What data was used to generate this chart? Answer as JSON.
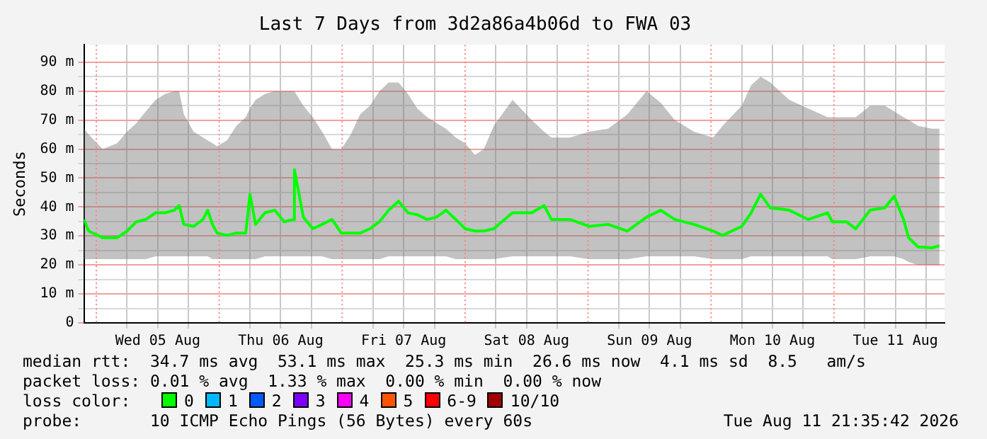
{
  "chart_data": {
    "type": "line",
    "title": "Last 7 Days from 3d2a86a4b06d to FWA 03",
    "ylabel": "Seconds",
    "legend_title": "loss color:",
    "legend": "bottom",
    "grid": true,
    "marker": "none",
    "line_style": "solid",
    "xlim": [
      "2026-08-04T21:35",
      "2026-08-11T21:35"
    ],
    "xticks": [
      {
        "value": "2026-08-05T06:00",
        "label": null
      },
      {
        "value": "2026-08-05T12:00",
        "label": "Wed 05 Aug"
      },
      {
        "value": "2026-08-05T18:00",
        "label": null
      },
      {
        "value": "2026-08-06T06:00",
        "label": null
      },
      {
        "value": "2026-08-06T12:00",
        "label": "Thu 06 Aug"
      },
      {
        "value": "2026-08-06T18:00",
        "label": null
      },
      {
        "value": "2026-08-07T06:00",
        "label": null
      },
      {
        "value": "2026-08-07T12:00",
        "label": "Fri 07 Aug"
      },
      {
        "value": "2026-08-07T18:00",
        "label": null
      },
      {
        "value": "2026-08-08T06:00",
        "label": null
      },
      {
        "value": "2026-08-08T12:00",
        "label": "Sat 08 Aug"
      },
      {
        "value": "2026-08-08T18:00",
        "label": null
      },
      {
        "value": "2026-08-09T06:00",
        "label": null
      },
      {
        "value": "2026-08-09T12:00",
        "label": "Sun 09 Aug"
      },
      {
        "value": "2026-08-09T18:00",
        "label": null
      },
      {
        "value": "2026-08-10T06:00",
        "label": null
      },
      {
        "value": "2026-08-10T12:00",
        "label": "Mon 10 Aug"
      },
      {
        "value": "2026-08-10T18:00",
        "label": null
      },
      {
        "value": "2026-08-11T06:00",
        "label": null
      },
      {
        "value": "2026-08-11T12:00",
        "label": "Tue 11 Aug"
      },
      {
        "value": "2026-08-11T18:00",
        "label": null
      }
    ],
    "ylim": [
      0,
      96
    ],
    "yticks": [
      0,
      {
        "value": 5,
        "label": null
      },
      {
        "value": 10,
        "label": "10 m"
      },
      {
        "value": 15,
        "label": null
      },
      {
        "value": 20,
        "label": "20 m"
      },
      {
        "value": 25,
        "label": null
      },
      {
        "value": 30,
        "label": "30 m"
      },
      {
        "value": 35,
        "label": null
      },
      {
        "value": 40,
        "label": "40 m"
      },
      {
        "value": 45,
        "label": null
      },
      {
        "value": 50,
        "label": "50 m"
      },
      {
        "value": 55,
        "label": null
      },
      {
        "value": 60,
        "label": "60 m"
      },
      {
        "value": 65,
        "label": null
      },
      {
        "value": 70,
        "label": "70 m"
      },
      {
        "value": 75,
        "label": null
      },
      {
        "value": 80,
        "label": "80 m"
      },
      {
        "value": 85,
        "label": null
      },
      {
        "value": 90,
        "label": "90 m"
      }
    ],
    "ref_lines": [
      {
        "axis": "x",
        "value": "2026-08-05T00:00",
        "color": "#ff8080",
        "line_style": "dotted"
      },
      {
        "axis": "x",
        "value": "2026-08-06T00:00",
        "color": "#ff8080",
        "line_style": "dotted"
      },
      {
        "axis": "x",
        "value": "2026-08-07T00:00",
        "color": "#ff8080",
        "line_style": "dotted"
      },
      {
        "axis": "x",
        "value": "2026-08-08T00:00",
        "color": "#ff8080",
        "line_style": "dotted"
      },
      {
        "axis": "x",
        "value": "2026-08-09T00:00",
        "color": "#ff8080",
        "line_style": "dotted"
      },
      {
        "axis": "x",
        "value": "2026-08-10T00:00",
        "color": "#ff8080",
        "line_style": "dotted"
      },
      {
        "axis": "x",
        "value": "2026-08-11T00:00",
        "color": "#ff8080",
        "line_style": "dotted"
      }
    ],
    "x": [
      "2026-08-04T21:35",
      "2026-08-04T22:30",
      "2026-08-05T01:15",
      "2026-08-05T04:05",
      "2026-08-05T06:00",
      "2026-08-05T07:50",
      "2026-08-05T09:40",
      "2026-08-05T11:35",
      "2026-08-05T13:25",
      "2026-08-05T15:15",
      "2026-08-05T16:10",
      "2026-08-05T17:05",
      "2026-08-05T19:00",
      "2026-08-05T20:50",
      "2026-08-05T21:45",
      "2026-08-05T22:40",
      "2026-08-05T23:35",
      "2026-08-06T01:30",
      "2026-08-06T03:20",
      "2026-08-06T05:10",
      "2026-08-06T06:00",
      "2026-08-06T07:05",
      "2026-08-06T08:55",
      "2026-08-06T10:50",
      "2026-08-06T12:40",
      "2026-08-06T14:30",
      "2026-08-06T14:40",
      "2026-08-06T16:25",
      "2026-08-06T18:15",
      "2026-08-06T20:05",
      "2026-08-06T22:00",
      "2026-08-06T23:50",
      "2026-08-07T01:40",
      "2026-08-07T03:30",
      "2026-08-07T05:25",
      "2026-08-07T07:15",
      "2026-08-07T09:05",
      "2026-08-07T11:00",
      "2026-08-07T12:50",
      "2026-08-07T14:40",
      "2026-08-07T16:35",
      "2026-08-07T18:25",
      "2026-08-07T20:15",
      "2026-08-07T22:10",
      "2026-08-08T00:00",
      "2026-08-08T01:55",
      "2026-08-08T03:40",
      "2026-08-08T05:35",
      "2026-08-08T09:15",
      "2026-08-08T13:00",
      "2026-08-08T15:25",
      "2026-08-08T16:50",
      "2026-08-08T20:30",
      "2026-08-09T00:10",
      "2026-08-09T03:55",
      "2026-08-09T07:40",
      "2026-08-09T11:25",
      "2026-08-09T14:10",
      "2026-08-09T16:55",
      "2026-08-09T20:40",
      "2026-08-10T00:25",
      "2026-08-10T02:15",
      "2026-08-10T06:00",
      "2026-08-10T07:50",
      "2026-08-10T09:40",
      "2026-08-10T11:35",
      "2026-08-10T15:15",
      "2026-08-10T19:00",
      "2026-08-10T22:45",
      "2026-08-10T23:40",
      "2026-08-11T02:25",
      "2026-08-11T04:15",
      "2026-08-11T07:05",
      "2026-08-11T09:55",
      "2026-08-11T11:45",
      "2026-08-11T13:35",
      "2026-08-11T14:35",
      "2026-08-11T16:25",
      "2026-08-11T19:10",
      "2026-08-11T20:35"
    ],
    "series": [
      {
        "name": "0",
        "color": "#00ff00",
        "values": [
          35.7,
          31.7,
          29.4,
          29.4,
          31.7,
          34.9,
          35.7,
          38,
          38,
          38.9,
          40.5,
          34,
          33.3,
          35.7,
          38.9,
          34,
          31,
          30.2,
          31,
          31,
          44.4,
          34,
          38,
          38.9,
          34.9,
          35.7,
          52.9,
          36.5,
          32.5,
          34,
          35.7,
          31,
          31,
          31,
          32.5,
          34.9,
          38.9,
          42,
          38,
          37.3,
          35.7,
          36.5,
          38.9,
          35.7,
          32.5,
          31.7,
          31.7,
          32.5,
          38,
          38,
          40.5,
          35.7,
          35.7,
          33.3,
          34,
          31.7,
          36.5,
          38.9,
          35.7,
          34,
          31.7,
          30.2,
          33.3,
          38,
          44.4,
          39.7,
          38.9,
          35.7,
          38,
          34.9,
          34.9,
          32.5,
          38.9,
          39.7,
          43.7,
          35.7,
          29.4,
          26.2,
          25.9,
          26.6
        ],
        "lower": [
          22,
          22,
          22,
          22,
          22,
          22,
          22,
          23,
          23,
          23,
          23,
          23,
          23,
          23,
          23,
          22,
          22,
          22,
          22,
          22,
          22,
          22,
          23,
          23,
          23,
          23,
          23,
          23,
          23,
          23,
          22,
          22,
          22,
          22,
          22,
          22,
          23,
          23,
          23,
          23,
          23,
          23,
          23,
          22,
          22,
          22,
          22,
          22,
          23,
          23,
          23,
          23,
          23,
          22,
          22,
          22,
          23,
          23,
          23,
          23,
          22,
          22,
          22,
          23,
          23,
          23,
          23,
          23,
          23,
          22,
          22,
          22,
          23,
          23,
          23,
          22,
          21,
          20,
          20,
          20
        ],
        "upper": [
          67,
          65,
          60,
          62,
          66,
          69,
          73,
          77,
          79,
          80,
          80,
          72,
          66,
          64,
          63,
          62,
          61,
          63,
          68,
          71,
          74,
          77,
          79,
          80,
          80,
          80,
          80,
          75,
          71,
          66,
          60,
          60,
          65,
          72,
          75,
          80,
          83,
          83,
          79,
          74,
          71,
          69,
          67,
          64,
          62,
          58,
          60,
          68,
          77,
          70,
          66,
          64,
          64,
          66,
          67,
          72,
          80,
          76,
          70,
          66,
          64,
          68,
          75,
          82,
          85,
          83,
          77,
          74,
          71,
          71,
          71,
          71,
          75,
          75,
          73,
          71,
          70,
          68,
          67,
          67
        ]
      },
      {
        "name": "1",
        "color": "#00b8ff",
        "values": [
          null,
          null,
          null,
          null,
          null,
          null,
          null,
          null,
          null,
          null,
          null,
          null,
          null,
          null,
          null,
          null,
          null,
          null,
          null,
          null,
          null,
          null,
          null,
          null,
          null,
          null,
          null,
          null,
          null,
          null,
          null,
          null,
          null,
          null,
          null,
          null,
          null,
          null,
          null,
          null,
          null,
          null,
          null,
          null,
          null,
          null,
          null,
          null,
          null,
          null,
          null,
          null,
          null,
          null,
          null,
          null,
          null,
          null,
          null,
          null,
          null,
          null,
          null,
          null,
          null,
          null,
          null,
          null,
          null,
          null,
          null,
          null,
          null,
          null,
          null,
          null,
          null,
          null,
          null,
          null
        ]
      },
      {
        "name": "2",
        "color": "#0059ff",
        "values": [
          null,
          null,
          null,
          null,
          null,
          null,
          null,
          null,
          null,
          null,
          null,
          null,
          null,
          null,
          null,
          null,
          null,
          null,
          null,
          null,
          null,
          null,
          null,
          null,
          null,
          null,
          null,
          null,
          null,
          null,
          null,
          null,
          null,
          null,
          null,
          null,
          null,
          null,
          null,
          null,
          null,
          null,
          null,
          null,
          null,
          null,
          null,
          null,
          null,
          null,
          null,
          null,
          null,
          null,
          null,
          null,
          null,
          null,
          null,
          null,
          null,
          null,
          null,
          null,
          null,
          null,
          null,
          null,
          null,
          null,
          null,
          null,
          null,
          null,
          null,
          null,
          null,
          null,
          null,
          null
        ]
      },
      {
        "name": "3",
        "color": "#7e00ff",
        "values": [
          null,
          null,
          null,
          null,
          null,
          null,
          null,
          null,
          null,
          null,
          null,
          null,
          null,
          null,
          null,
          null,
          null,
          null,
          null,
          null,
          null,
          null,
          null,
          null,
          null,
          null,
          null,
          null,
          null,
          null,
          null,
          null,
          null,
          null,
          null,
          null,
          null,
          null,
          null,
          null,
          null,
          null,
          null,
          null,
          null,
          null,
          null,
          null,
          null,
          null,
          null,
          null,
          null,
          null,
          null,
          null,
          null,
          null,
          null,
          null,
          null,
          null,
          null,
          null,
          null,
          null,
          null,
          null,
          null,
          null,
          null,
          null,
          null,
          null,
          null,
          null,
          null,
          null,
          null,
          null
        ]
      },
      {
        "name": "4",
        "color": "#ff00ff",
        "values": [
          null,
          null,
          null,
          null,
          null,
          null,
          null,
          null,
          null,
          null,
          null,
          null,
          null,
          null,
          null,
          null,
          null,
          null,
          null,
          null,
          null,
          null,
          null,
          null,
          null,
          null,
          null,
          null,
          null,
          null,
          null,
          null,
          null,
          null,
          null,
          null,
          null,
          null,
          null,
          null,
          null,
          null,
          null,
          null,
          null,
          null,
          null,
          null,
          null,
          null,
          null,
          null,
          null,
          null,
          null,
          null,
          null,
          null,
          null,
          null,
          null,
          null,
          null,
          null,
          null,
          null,
          null,
          null,
          null,
          null,
          null,
          null,
          null,
          null,
          null,
          null,
          null,
          null,
          null,
          null
        ]
      },
      {
        "name": "5",
        "color": "#ff5500",
        "values": [
          null,
          null,
          null,
          null,
          null,
          null,
          null,
          null,
          null,
          null,
          null,
          null,
          null,
          null,
          null,
          null,
          null,
          null,
          null,
          null,
          null,
          null,
          null,
          null,
          null,
          null,
          null,
          null,
          null,
          null,
          null,
          null,
          null,
          null,
          null,
          null,
          null,
          null,
          null,
          null,
          null,
          null,
          null,
          null,
          null,
          null,
          null,
          null,
          null,
          null,
          null,
          null,
          null,
          null,
          null,
          null,
          null,
          null,
          null,
          null,
          null,
          null,
          null,
          null,
          null,
          null,
          null,
          null,
          null,
          null,
          null,
          null,
          null,
          null,
          null,
          null,
          null,
          null,
          null,
          null
        ]
      },
      {
        "name": "6-9",
        "color": "#ff0000",
        "values": [
          null,
          null,
          null,
          null,
          null,
          null,
          null,
          null,
          null,
          null,
          null,
          null,
          null,
          null,
          null,
          null,
          null,
          null,
          null,
          null,
          null,
          null,
          null,
          null,
          null,
          null,
          null,
          null,
          null,
          null,
          null,
          null,
          null,
          null,
          null,
          null,
          null,
          null,
          null,
          null,
          null,
          null,
          null,
          null,
          null,
          null,
          null,
          null,
          null,
          null,
          null,
          null,
          null,
          null,
          null,
          null,
          null,
          null,
          null,
          null,
          null,
          null,
          null,
          null,
          null,
          null,
          null,
          null,
          null,
          null,
          null,
          null,
          null,
          null,
          null,
          null,
          null,
          null,
          null,
          null
        ]
      },
      {
        "name": "10/10",
        "color": "#a10000",
        "values": [
          null,
          null,
          null,
          null,
          null,
          null,
          null,
          null,
          null,
          null,
          null,
          null,
          null,
          null,
          null,
          null,
          null,
          null,
          null,
          null,
          null,
          null,
          null,
          null,
          null,
          null,
          null,
          null,
          null,
          null,
          null,
          null,
          null,
          null,
          null,
          null,
          null,
          null,
          null,
          null,
          null,
          null,
          null,
          null,
          null,
          null,
          null,
          null,
          null,
          null,
          null,
          null,
          null,
          null,
          null,
          null,
          null,
          null,
          null,
          null,
          null,
          null,
          null,
          null,
          null,
          null,
          null,
          null,
          null,
          null,
          null,
          null,
          null,
          null,
          null,
          null,
          null,
          null,
          null,
          null
        ]
      }
    ],
    "annotations": [
      "median rtt:  34.7 ms avg  53.1 ms max  25.3 ms min  26.6 ms now  4.1 ms sd  8.5   am/s",
      "packet loss: 0.01 % avg  1.33 % max  0.00 % min  0.00 % now",
      "probe:       10 ICMP Echo Pings (56 Bytes) every 60s",
      "Tue Aug 11 21:35:42 2026"
    ]
  }
}
